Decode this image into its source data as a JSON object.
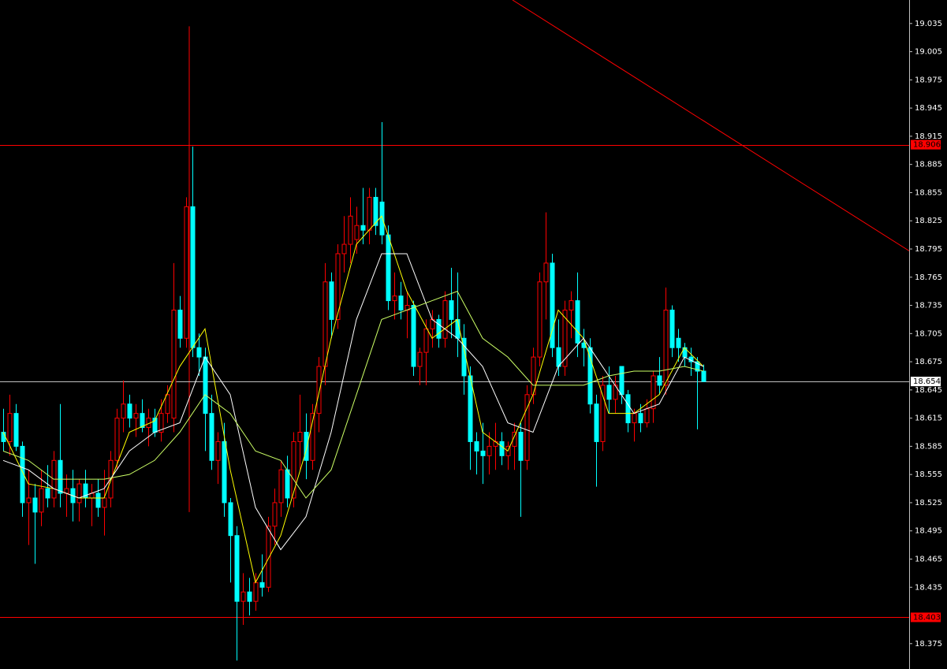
{
  "chart_data": {
    "type": "candlestick",
    "up_color": "#ff0000",
    "down_color": "#00ffff",
    "ylim": [
      18.348,
      19.06
    ],
    "yticks": [
      19.035,
      19.005,
      18.975,
      18.945,
      18.915,
      18.885,
      18.855,
      18.825,
      18.795,
      18.765,
      18.735,
      18.705,
      18.675,
      18.645,
      18.615,
      18.585,
      18.555,
      18.525,
      18.495,
      18.465,
      18.435,
      18.375
    ],
    "open": [
      18.6,
      18.59,
      18.62,
      18.585,
      18.525,
      18.53,
      18.515,
      18.54,
      18.53,
      18.57,
      18.535,
      18.54,
      18.525,
      18.545,
      18.53,
      18.535,
      18.52,
      18.53,
      18.57,
      18.615,
      18.63,
      18.615,
      18.62,
      18.605,
      18.615,
      18.6,
      18.62,
      18.615,
      18.73,
      18.7,
      18.84,
      18.69,
      18.68,
      18.62,
      18.57,
      18.59,
      18.525,
      18.49,
      18.42,
      18.43,
      18.42,
      18.44,
      18.435,
      18.5,
      18.525,
      18.56,
      18.53,
      18.59,
      18.6,
      18.57,
      18.62,
      18.67,
      18.76,
      18.72,
      18.79,
      18.8,
      18.805,
      18.82,
      18.815,
      18.85,
      18.845,
      18.81,
      18.74,
      18.745,
      18.73,
      18.735,
      18.67,
      18.685,
      18.71,
      18.72,
      18.7,
      18.74,
      18.72,
      18.7,
      18.66,
      18.59,
      18.58,
      18.575,
      18.585,
      18.59,
      18.575,
      18.585,
      18.6,
      18.57,
      18.64,
      18.68,
      18.76,
      18.78,
      18.69,
      18.67,
      18.73,
      18.74,
      18.695,
      18.69,
      18.63,
      18.59,
      18.65,
      18.635,
      18.67,
      18.64,
      18.61,
      18.62,
      18.61,
      18.625,
      18.66,
      18.65,
      18.73,
      18.7,
      18.69,
      18.68,
      18.675,
      18.665
    ],
    "high": [
      18.625,
      18.64,
      18.63,
      18.59,
      18.56,
      18.545,
      18.56,
      18.565,
      18.58,
      18.63,
      18.555,
      18.56,
      18.55,
      18.56,
      18.545,
      18.55,
      18.56,
      18.58,
      18.625,
      18.655,
      18.64,
      18.63,
      18.635,
      18.625,
      18.625,
      18.635,
      18.65,
      18.78,
      18.745,
      18.85,
      18.904,
      18.705,
      18.69,
      18.64,
      18.6,
      18.61,
      18.53,
      18.5,
      18.45,
      18.445,
      18.45,
      18.47,
      18.51,
      18.54,
      18.57,
      18.575,
      18.6,
      18.64,
      18.62,
      18.63,
      18.68,
      18.78,
      18.77,
      18.8,
      18.83,
      18.85,
      18.84,
      18.86,
      18.86,
      18.86,
      18.93,
      18.82,
      18.77,
      18.76,
      18.75,
      18.74,
      18.69,
      18.72,
      18.73,
      18.725,
      18.75,
      18.775,
      18.77,
      18.715,
      18.67,
      18.6,
      18.61,
      18.6,
      18.61,
      18.6,
      18.59,
      18.61,
      18.61,
      18.65,
      18.69,
      18.77,
      18.834,
      18.79,
      18.72,
      18.74,
      18.75,
      18.77,
      18.71,
      18.7,
      18.64,
      18.66,
      18.67,
      18.66,
      18.67,
      18.645,
      18.625,
      18.63,
      18.635,
      18.665,
      18.68,
      18.754,
      18.735,
      18.71,
      18.695,
      18.69,
      18.68,
      18.672
    ],
    "low": [
      18.58,
      18.575,
      18.58,
      18.51,
      18.48,
      18.46,
      18.5,
      18.52,
      18.52,
      18.52,
      18.51,
      18.505,
      18.505,
      18.52,
      18.5,
      18.51,
      18.49,
      18.52,
      18.56,
      18.6,
      18.605,
      18.595,
      18.6,
      18.585,
      18.595,
      18.59,
      18.61,
      18.6,
      18.69,
      18.69,
      18.68,
      18.66,
      18.58,
      18.56,
      18.545,
      18.51,
      18.44,
      18.357,
      18.395,
      18.405,
      18.41,
      18.425,
      18.43,
      18.48,
      18.51,
      18.52,
      18.52,
      18.56,
      18.55,
      18.56,
      18.6,
      18.65,
      18.7,
      18.71,
      18.77,
      18.78,
      18.79,
      18.8,
      18.8,
      18.81,
      18.8,
      18.73,
      18.72,
      18.72,
      18.7,
      18.66,
      18.65,
      18.65,
      18.69,
      18.69,
      18.69,
      18.7,
      18.68,
      18.64,
      18.56,
      18.555,
      18.545,
      18.555,
      18.56,
      18.565,
      18.56,
      18.56,
      18.51,
      18.56,
      18.63,
      18.67,
      18.72,
      18.68,
      18.66,
      18.66,
      18.7,
      18.68,
      18.67,
      18.62,
      18.542,
      18.58,
      18.62,
      18.62,
      18.63,
      18.6,
      18.59,
      18.6,
      18.605,
      18.61,
      18.64,
      18.64,
      18.68,
      18.675,
      18.67,
      18.66,
      18.603,
      18.654
    ],
    "close": [
      18.59,
      18.62,
      18.585,
      18.525,
      18.53,
      18.515,
      18.54,
      18.53,
      18.57,
      18.535,
      18.54,
      18.525,
      18.545,
      18.53,
      18.535,
      18.52,
      18.53,
      18.57,
      18.615,
      18.63,
      18.615,
      18.62,
      18.605,
      18.615,
      18.6,
      18.62,
      18.64,
      18.73,
      18.7,
      18.84,
      18.69,
      18.68,
      18.62,
      18.57,
      18.59,
      18.525,
      18.49,
      18.42,
      18.43,
      18.42,
      18.44,
      18.435,
      18.5,
      18.525,
      18.56,
      18.53,
      18.59,
      18.6,
      18.57,
      18.62,
      18.67,
      18.76,
      18.72,
      18.79,
      18.8,
      18.83,
      18.82,
      18.815,
      18.85,
      18.82,
      18.81,
      18.74,
      18.745,
      18.73,
      18.735,
      18.67,
      18.685,
      18.71,
      18.72,
      18.7,
      18.74,
      18.72,
      18.7,
      18.66,
      18.59,
      18.58,
      18.575,
      18.585,
      18.59,
      18.575,
      18.585,
      18.6,
      18.57,
      18.64,
      18.68,
      18.76,
      18.78,
      18.69,
      18.67,
      18.73,
      18.74,
      18.695,
      18.69,
      18.63,
      18.59,
      18.65,
      18.635,
      18.65,
      18.64,
      18.61,
      18.62,
      18.61,
      18.625,
      18.66,
      18.65,
      18.73,
      18.69,
      18.69,
      18.68,
      18.675,
      18.665,
      18.654
    ],
    "lines": [
      {
        "color": "#ffff00",
        "x": [
          0,
          4,
          8,
          12,
          16,
          20,
          24,
          28,
          32,
          36,
          40,
          44,
          48,
          52,
          56,
          60,
          64,
          68,
          72,
          76,
          80,
          84,
          88,
          92,
          96,
          100,
          104,
          108,
          111
        ],
        "values": [
          18.6,
          18.545,
          18.54,
          18.53,
          18.53,
          18.6,
          18.612,
          18.67,
          18.71,
          18.56,
          18.44,
          18.49,
          18.58,
          18.7,
          18.8,
          18.83,
          18.75,
          18.7,
          18.72,
          18.6,
          18.58,
          18.64,
          18.73,
          18.7,
          18.62,
          18.62,
          18.64,
          18.69,
          18.67
        ]
      },
      {
        "color": "#ffffff",
        "x": [
          0,
          4,
          8,
          12,
          16,
          20,
          24,
          28,
          32,
          36,
          40,
          44,
          48,
          52,
          56,
          60,
          64,
          68,
          72,
          76,
          80,
          84,
          88,
          92,
          96,
          100,
          104,
          108,
          111
        ],
        "values": [
          18.57,
          18.56,
          18.54,
          18.53,
          18.54,
          18.58,
          18.6,
          18.61,
          18.68,
          18.64,
          18.52,
          18.475,
          18.51,
          18.6,
          18.72,
          18.79,
          18.79,
          18.72,
          18.7,
          18.67,
          18.61,
          18.6,
          18.67,
          18.7,
          18.66,
          18.62,
          18.63,
          18.68,
          18.67
        ]
      },
      {
        "color": "#ccff66",
        "x": [
          0,
          4,
          8,
          12,
          16,
          20,
          24,
          28,
          32,
          36,
          40,
          44,
          48,
          52,
          56,
          60,
          64,
          68,
          72,
          76,
          80,
          84,
          88,
          92,
          96,
          100,
          104,
          108,
          111
        ],
        "values": [
          18.58,
          18.57,
          18.55,
          18.55,
          18.55,
          18.555,
          18.57,
          18.6,
          18.64,
          18.62,
          18.58,
          18.57,
          18.53,
          18.56,
          18.64,
          18.72,
          18.73,
          18.74,
          18.75,
          18.7,
          18.68,
          18.65,
          18.65,
          18.65,
          18.66,
          18.665,
          18.665,
          18.67,
          18.665
        ]
      }
    ],
    "levels": [
      {
        "value": 18.906,
        "color": "#ff0000",
        "label_fill": "#ff0000",
        "label_color": "#000000"
      },
      {
        "value": 18.654,
        "color": "#c0c0c0",
        "label_fill": "#ffffff",
        "label_color": "#000000"
      },
      {
        "value": 18.403,
        "color": "#ff0000",
        "label_fill": "#ff0000",
        "label_color": "#000000"
      }
    ],
    "trend_line": {
      "color": "#ff0000",
      "x": [
        80.75,
        143.625
      ],
      "values": [
        19.06,
        18.793
      ]
    },
    "vertical_line": {
      "color": "#ff0000",
      "x": 29.5,
      "values": [
        19.032,
        18.515
      ]
    }
  }
}
